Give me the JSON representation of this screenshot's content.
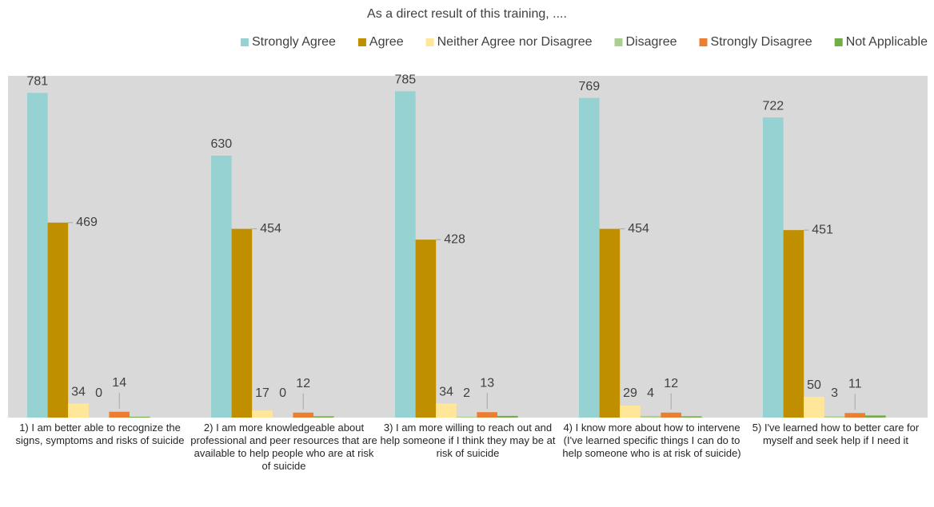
{
  "chart_data": {
    "type": "bar",
    "title": "As a direct result of this training, ....",
    "categories": [
      "1) I am better able to recognize the signs, symptoms and risks of suicide",
      "2) I am more knowledgeable about professional and peer resources that are available to help people who are at risk of suicide",
      "3) I am more willing to reach out and help someone if I think they may be at risk of suicide",
      "4) I know more about how to intervene (I've learned specific things I can do to help someone who is at risk of suicide)",
      "5) I've learned how to better care for myself and seek help if I need it"
    ],
    "series": [
      {
        "name": "Strongly Agree",
        "color": "#96d2d1",
        "values": [
          781,
          630,
          785,
          769,
          722
        ],
        "data_labels": true
      },
      {
        "name": "Agree",
        "color": "#bf8f00",
        "values": [
          469,
          454,
          428,
          454,
          451
        ],
        "data_labels": true
      },
      {
        "name": "Neither Agree nor Disagree",
        "color": "#ffe699",
        "values": [
          34,
          17,
          34,
          29,
          50
        ],
        "data_labels": true
      },
      {
        "name": "Disagree",
        "color": "#a9d18e",
        "values": [
          0,
          0,
          2,
          4,
          3
        ],
        "data_labels": true
      },
      {
        "name": "Strongly Disagree",
        "color": "#ed7d31",
        "values": [
          14,
          12,
          13,
          12,
          11
        ],
        "data_labels": true
      },
      {
        "name": "Not Applicable",
        "color": "#70ad47",
        "values": [
          2,
          3,
          4,
          3,
          5
        ],
        "data_labels": false
      }
    ],
    "ylim": [
      0,
      822
    ],
    "legend": "top"
  }
}
